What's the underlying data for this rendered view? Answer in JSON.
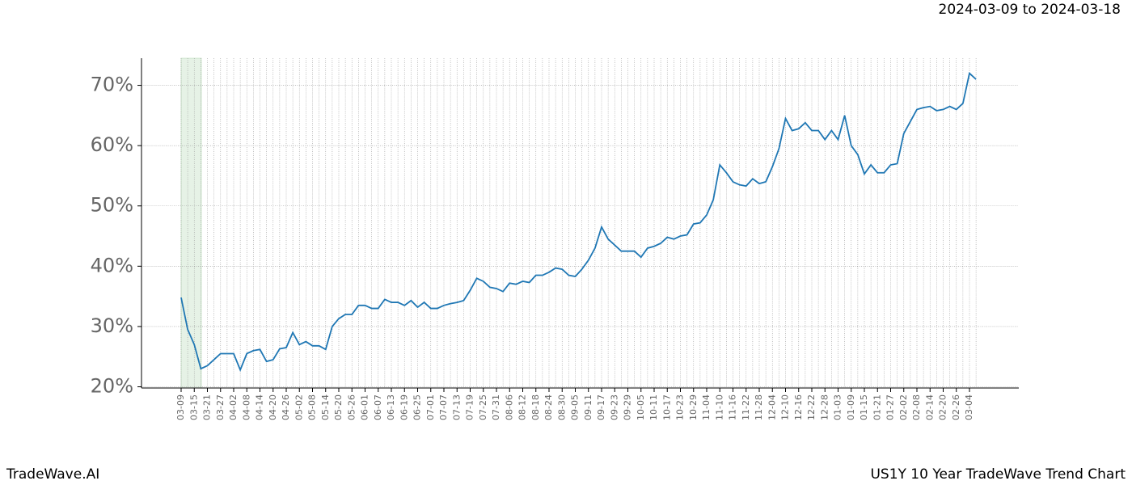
{
  "chart_data": {
    "type": "line",
    "subtitle": "2024-03-09 to 2024-03-18",
    "footer_left": "TradeWave.AI",
    "footer_right": "US1Y 10 Year TradeWave Trend Chart",
    "x": [
      "03-09",
      null,
      "03-15",
      null,
      "03-21",
      null,
      "03-27",
      null,
      "04-02",
      null,
      "04-08",
      null,
      "04-14",
      null,
      "04-20",
      null,
      "04-26",
      null,
      "05-02",
      null,
      "05-08",
      null,
      "05-14",
      null,
      "05-20",
      null,
      "05-26",
      null,
      "06-01",
      null,
      "06-07",
      null,
      "06-13",
      null,
      "06-19",
      null,
      "06-25",
      null,
      "07-01",
      null,
      "07-07",
      null,
      "07-13",
      null,
      "07-19",
      null,
      "07-25",
      null,
      "07-31",
      null,
      "08-06",
      null,
      "08-12",
      null,
      "08-18",
      null,
      "08-24",
      null,
      "08-30",
      null,
      "09-05",
      null,
      "09-11",
      null,
      "09-17",
      null,
      "09-23",
      null,
      "09-29",
      null,
      "10-05",
      null,
      "10-11",
      null,
      "10-17",
      null,
      "10-23",
      null,
      "10-29",
      null,
      "11-04",
      null,
      "11-10",
      null,
      "11-16",
      null,
      "11-22",
      null,
      "11-28",
      null,
      "12-04",
      null,
      "12-10",
      null,
      "12-16",
      null,
      "12-22",
      null,
      "12-28",
      null,
      "01-03",
      null,
      "01-09",
      null,
      "01-15",
      null,
      "01-21",
      null,
      "01-27",
      null,
      "02-02",
      null,
      "02-08",
      null,
      "02-14",
      null,
      "02-20",
      null,
      "02-26",
      null,
      "03-04",
      null
    ],
    "series": [
      {
        "color": "#1f77b4",
        "values": [
          34.8,
          29.5,
          27,
          23,
          23.5,
          24.5,
          25.5,
          25.5,
          25.5,
          22.8,
          25.5,
          26,
          26.2,
          24.2,
          24.5,
          26.3,
          26.5,
          29,
          27,
          27.5,
          26.8,
          26.8,
          26.2,
          30,
          31.3,
          32,
          32,
          33.5,
          33.5,
          33,
          33,
          34.5,
          34,
          34,
          33.5,
          34.3,
          33.2,
          34,
          33,
          33,
          33.5,
          33.8,
          34,
          34.3,
          36,
          38,
          37.5,
          36.5,
          36.3,
          35.8,
          37.2,
          37,
          37.5,
          37.3,
          38.5,
          38.5,
          39,
          39.7,
          39.5,
          38.5,
          38.3,
          39.5,
          41,
          43,
          46.5,
          44.5,
          43.5,
          42.5,
          42.5,
          42.5,
          41.5,
          43,
          43.3,
          43.8,
          44.8,
          44.5,
          45,
          45.2,
          47,
          47.2,
          48.5,
          51,
          56.8,
          55.5,
          54,
          53.5,
          53.3,
          54.5,
          53.7,
          54,
          56.5,
          59.5,
          64.5,
          62.5,
          62.8,
          63.8,
          62.5,
          62.5,
          61,
          62.5,
          61,
          65,
          60,
          58.5,
          55.3,
          56.8,
          55.5,
          55.5,
          56.8,
          57,
          62,
          64,
          66,
          66.3,
          66.5,
          65.8,
          66,
          66.5,
          66,
          67,
          72,
          71
        ]
      }
    ],
    "ylim": [
      19.8,
      74.5
    ],
    "yticks": [
      {
        "value": 20,
        "label": "20%"
      },
      {
        "value": 30,
        "label": "30%"
      },
      {
        "value": 40,
        "label": "40%"
      },
      {
        "value": 50,
        "label": "50%"
      },
      {
        "value": 60,
        "label": "60%"
      },
      {
        "value": 70,
        "label": "70%"
      }
    ],
    "grid": true
  }
}
